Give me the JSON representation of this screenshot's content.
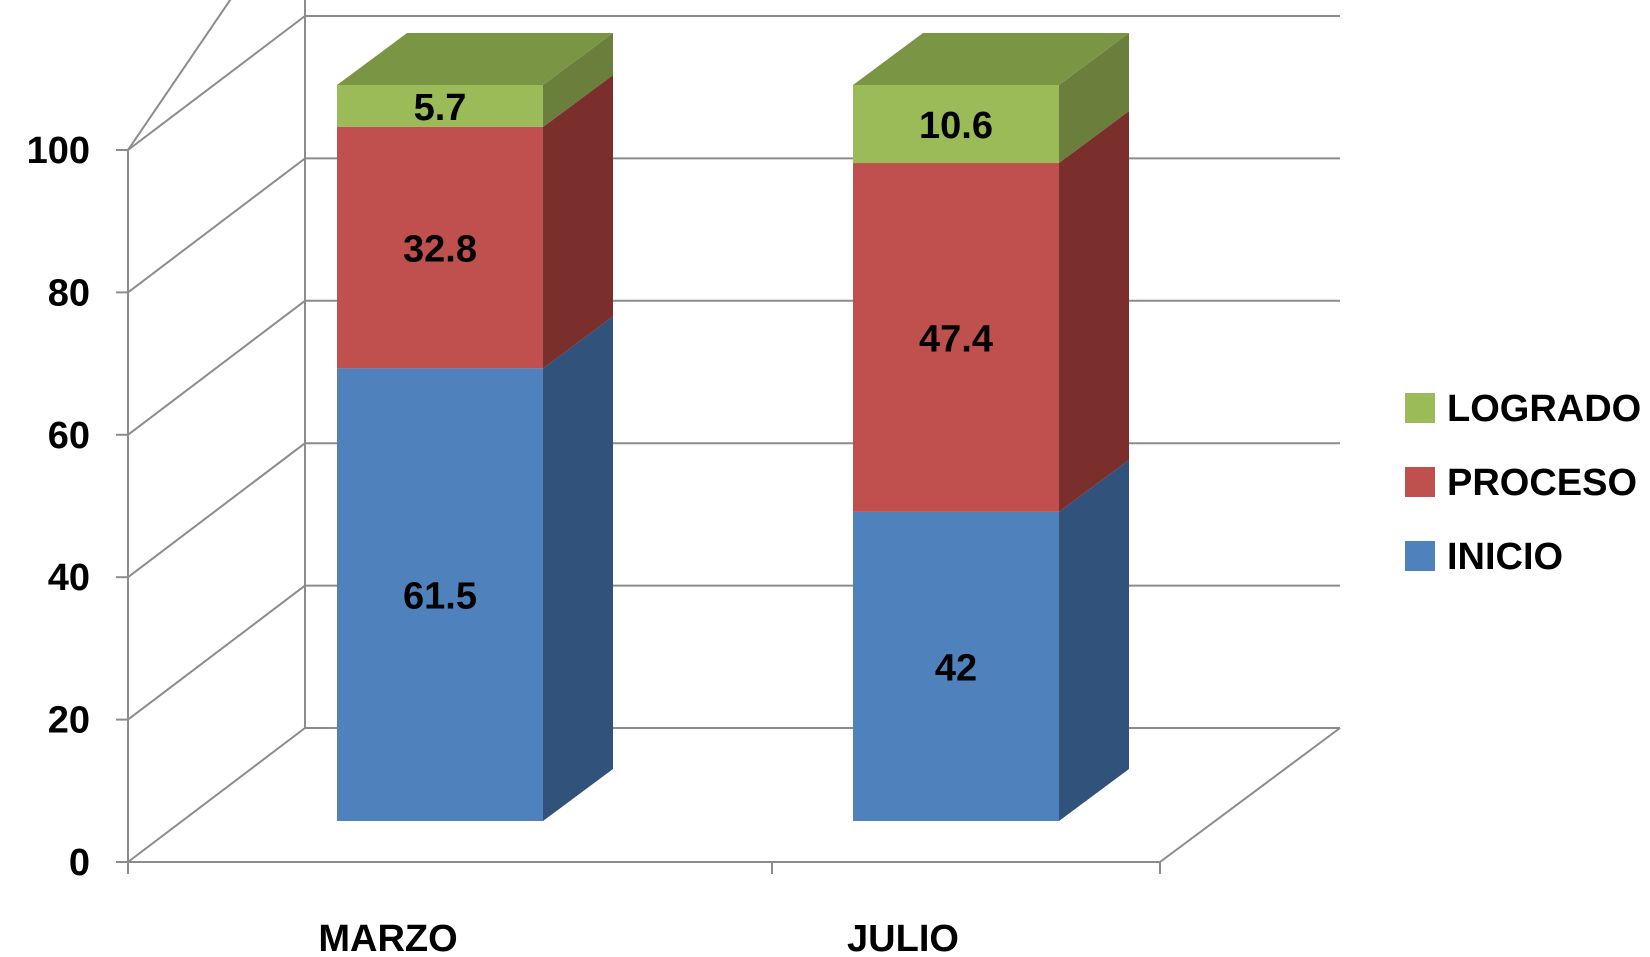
{
  "chart_data": {
    "type": "bar",
    "stacked": true,
    "style": "3d-column",
    "categories": [
      "MARZO",
      "JULIO"
    ],
    "series": [
      {
        "name": "INICIO",
        "values": [
          61.5,
          42
        ],
        "color": "#4F81BD",
        "side_color": "#31527A",
        "top_color": "#4F81BD"
      },
      {
        "name": "PROCESO",
        "values": [
          32.8,
          47.4
        ],
        "color": "#C0504D",
        "side_color": "#7B2F2D",
        "top_color": "#C0504D"
      },
      {
        "name": "LOGRADO",
        "values": [
          5.7,
          10.6
        ],
        "color": "#9BBB59",
        "side_color": "#6A7F3B",
        "top_color": "#7A9644"
      }
    ],
    "data_labels": [
      [
        "61.5",
        "42"
      ],
      [
        "32.8",
        "47.4"
      ],
      [
        "5.7",
        "10.6"
      ]
    ],
    "yticks": [
      "0",
      "20",
      "40",
      "60",
      "80",
      "100"
    ],
    "ytick_values": [
      0,
      20,
      40,
      60,
      80,
      100
    ],
    "ylim": [
      0,
      100
    ],
    "grid": true,
    "legend_position": "right",
    "legend_order": [
      "LOGRADO",
      "PROCESO",
      "INICIO"
    ]
  }
}
